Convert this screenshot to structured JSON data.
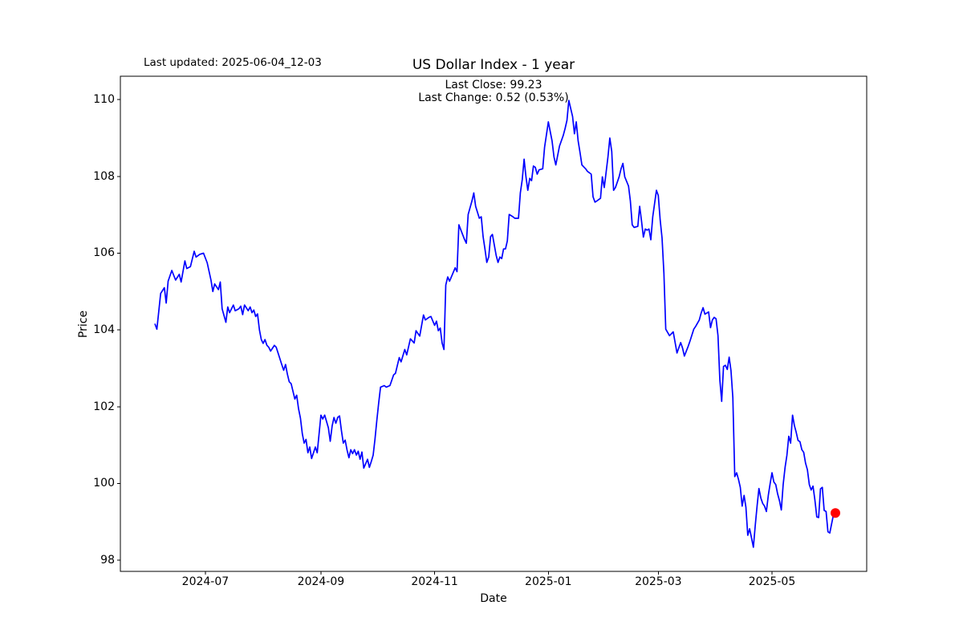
{
  "figure": {
    "last_updated": "Last updated: 2025-06-04_12-03",
    "background": "#ffffff"
  },
  "chart_data": {
    "type": "line",
    "title": "US Dollar Index - 1 year",
    "annotation": {
      "line1": "Last Close: 99.23",
      "line2": "Last Change: 0.52 (0.53%)"
    },
    "xlabel": "Date",
    "ylabel": "Price",
    "legend": "none",
    "grid": false,
    "x_unit": "days since 2024-06-04",
    "xlim": [
      -18.6,
      381.8
    ],
    "ylim": [
      97.71,
      110.61
    ],
    "x_ticks": [
      {
        "label": "2024-07",
        "day": 27
      },
      {
        "label": "2024-09",
        "day": 89
      },
      {
        "label": "2024-11",
        "day": 150
      },
      {
        "label": "2025-01",
        "day": 211
      },
      {
        "label": "2025-03",
        "day": 270
      },
      {
        "label": "2025-05",
        "day": 331
      }
    ],
    "y_ticks": [
      98,
      100,
      102,
      104,
      106,
      108,
      110
    ],
    "last_close": 99.23,
    "last_change": "0.52 (0.53%)",
    "last_point": {
      "day": 365,
      "price": 99.23,
      "color": "#ff0000",
      "radius": 6
    },
    "series": [
      {
        "name": "US Dollar Index",
        "color": "#0000ff",
        "line_width": 1.7,
        "points": [
          [
            0,
            104.15
          ],
          [
            1,
            104.02
          ],
          [
            3,
            104.95
          ],
          [
            5,
            105.1
          ],
          [
            6,
            104.7
          ],
          [
            7,
            105.27
          ],
          [
            9,
            105.55
          ],
          [
            11,
            105.3
          ],
          [
            13,
            105.45
          ],
          [
            14,
            105.25
          ],
          [
            16,
            105.8
          ],
          [
            17,
            105.6
          ],
          [
            19,
            105.65
          ],
          [
            21,
            106.05
          ],
          [
            22,
            105.9
          ],
          [
            24,
            105.97
          ],
          [
            26,
            106.0
          ],
          [
            28,
            105.75
          ],
          [
            30,
            105.3
          ],
          [
            31,
            105.0
          ],
          [
            32,
            105.2
          ],
          [
            34,
            105.05
          ],
          [
            35,
            105.25
          ],
          [
            36,
            104.55
          ],
          [
            38,
            104.2
          ],
          [
            39,
            104.6
          ],
          [
            40,
            104.45
          ],
          [
            42,
            104.65
          ],
          [
            43,
            104.5
          ],
          [
            45,
            104.55
          ],
          [
            46,
            104.62
          ],
          [
            47,
            104.4
          ],
          [
            48,
            104.65
          ],
          [
            50,
            104.5
          ],
          [
            51,
            104.6
          ],
          [
            52,
            104.45
          ],
          [
            53,
            104.52
          ],
          [
            54,
            104.35
          ],
          [
            55,
            104.42
          ],
          [
            56,
            104.0
          ],
          [
            57,
            103.75
          ],
          [
            58,
            103.65
          ],
          [
            59,
            103.75
          ],
          [
            60,
            103.6
          ],
          [
            61,
            103.55
          ],
          [
            62,
            103.45
          ],
          [
            64,
            103.6
          ],
          [
            65,
            103.55
          ],
          [
            66,
            103.4
          ],
          [
            68,
            103.1
          ],
          [
            69,
            102.95
          ],
          [
            70,
            103.1
          ],
          [
            71,
            102.85
          ],
          [
            72,
            102.65
          ],
          [
            73,
            102.6
          ],
          [
            74,
            102.4
          ],
          [
            75,
            102.2
          ],
          [
            76,
            102.3
          ],
          [
            77,
            101.95
          ],
          [
            78,
            101.7
          ],
          [
            79,
            101.3
          ],
          [
            80,
            101.05
          ],
          [
            81,
            101.15
          ],
          [
            82,
            100.8
          ],
          [
            83,
            100.95
          ],
          [
            84,
            100.65
          ],
          [
            86,
            100.95
          ],
          [
            87,
            100.8
          ],
          [
            89,
            101.78
          ],
          [
            90,
            101.68
          ],
          [
            91,
            101.78
          ],
          [
            93,
            101.45
          ],
          [
            94,
            101.1
          ],
          [
            95,
            101.5
          ],
          [
            96,
            101.72
          ],
          [
            97,
            101.57
          ],
          [
            98,
            101.72
          ],
          [
            99,
            101.76
          ],
          [
            100,
            101.37
          ],
          [
            101,
            101.05
          ],
          [
            102,
            101.13
          ],
          [
            103,
            100.88
          ],
          [
            104,
            100.67
          ],
          [
            105,
            100.88
          ],
          [
            106,
            100.78
          ],
          [
            107,
            100.88
          ],
          [
            108,
            100.74
          ],
          [
            109,
            100.84
          ],
          [
            110,
            100.63
          ],
          [
            111,
            100.82
          ],
          [
            112,
            100.4
          ],
          [
            114,
            100.63
          ],
          [
            115,
            100.42
          ],
          [
            116,
            100.57
          ],
          [
            117,
            100.74
          ],
          [
            118,
            101.16
          ],
          [
            119,
            101.65
          ],
          [
            120,
            102.1
          ],
          [
            121,
            102.51
          ],
          [
            123,
            102.55
          ],
          [
            124,
            102.51
          ],
          [
            126,
            102.55
          ],
          [
            128,
            102.83
          ],
          [
            129,
            102.87
          ],
          [
            131,
            103.28
          ],
          [
            132,
            103.17
          ],
          [
            134,
            103.49
          ],
          [
            135,
            103.35
          ],
          [
            137,
            103.77
          ],
          [
            139,
            103.66
          ],
          [
            140,
            103.98
          ],
          [
            142,
            103.84
          ],
          [
            144,
            104.39
          ],
          [
            145,
            104.26
          ],
          [
            147,
            104.33
          ],
          [
            148,
            104.35
          ],
          [
            150,
            104.12
          ],
          [
            151,
            104.23
          ],
          [
            152,
            103.98
          ],
          [
            153,
            104.05
          ],
          [
            154,
            103.66
          ],
          [
            155,
            103.49
          ],
          [
            156,
            105.17
          ],
          [
            157,
            105.38
          ],
          [
            158,
            105.27
          ],
          [
            161,
            105.62
          ],
          [
            162,
            105.52
          ],
          [
            163,
            106.74
          ],
          [
            165,
            106.49
          ],
          [
            166,
            106.36
          ],
          [
            167,
            106.26
          ],
          [
            168,
            107.01
          ],
          [
            170,
            107.36
          ],
          [
            171,
            107.57
          ],
          [
            172,
            107.22
          ],
          [
            174,
            106.91
          ],
          [
            175,
            106.95
          ],
          [
            176,
            106.43
          ],
          [
            177,
            106.11
          ],
          [
            178,
            105.76
          ],
          [
            179,
            105.9
          ],
          [
            180,
            106.43
          ],
          [
            181,
            106.49
          ],
          [
            183,
            105.94
          ],
          [
            184,
            105.76
          ],
          [
            185,
            105.9
          ],
          [
            186,
            105.86
          ],
          [
            187,
            106.11
          ],
          [
            188,
            106.11
          ],
          [
            189,
            106.32
          ],
          [
            190,
            107.01
          ],
          [
            192,
            106.95
          ],
          [
            193,
            106.91
          ],
          [
            195,
            106.91
          ],
          [
            196,
            107.57
          ],
          [
            197,
            107.92
          ],
          [
            198,
            108.45
          ],
          [
            199,
            107.99
          ],
          [
            200,
            107.64
          ],
          [
            201,
            107.95
          ],
          [
            202,
            107.89
          ],
          [
            203,
            108.27
          ],
          [
            204,
            108.24
          ],
          [
            205,
            108.06
          ],
          [
            206,
            108.17
          ],
          [
            208,
            108.2
          ],
          [
            209,
            108.76
          ],
          [
            211,
            109.42
          ],
          [
            213,
            108.93
          ],
          [
            214,
            108.51
          ],
          [
            215,
            108.3
          ],
          [
            217,
            108.79
          ],
          [
            219,
            109.07
          ],
          [
            220,
            109.25
          ],
          [
            221,
            109.46
          ],
          [
            222,
            109.98
          ],
          [
            224,
            109.56
          ],
          [
            225,
            109.11
          ],
          [
            226,
            109.42
          ],
          [
            227,
            108.93
          ],
          [
            228,
            108.62
          ],
          [
            229,
            108.3
          ],
          [
            231,
            108.2
          ],
          [
            232,
            108.13
          ],
          [
            234,
            108.06
          ],
          [
            235,
            107.47
          ],
          [
            236,
            107.33
          ],
          [
            237,
            107.36
          ],
          [
            239,
            107.43
          ],
          [
            240,
            107.99
          ],
          [
            241,
            107.71
          ],
          [
            243,
            108.51
          ],
          [
            244,
            109.0
          ],
          [
            245,
            108.65
          ],
          [
            246,
            107.64
          ],
          [
            247,
            107.71
          ],
          [
            249,
            107.99
          ],
          [
            250,
            108.2
          ],
          [
            251,
            108.34
          ],
          [
            252,
            107.99
          ],
          [
            254,
            107.75
          ],
          [
            255,
            107.36
          ],
          [
            256,
            106.74
          ],
          [
            257,
            106.67
          ],
          [
            259,
            106.7
          ],
          [
            260,
            107.22
          ],
          [
            261,
            106.84
          ],
          [
            262,
            106.42
          ],
          [
            263,
            106.63
          ],
          [
            264,
            106.6
          ],
          [
            265,
            106.63
          ],
          [
            266,
            106.35
          ],
          [
            267,
            106.95
          ],
          [
            269,
            107.64
          ],
          [
            270,
            107.5
          ],
          [
            271,
            106.88
          ],
          [
            272,
            106.39
          ],
          [
            273,
            105.48
          ],
          [
            274,
            104.02
          ],
          [
            276,
            103.85
          ],
          [
            278,
            103.95
          ],
          [
            280,
            103.4
          ],
          [
            282,
            103.67
          ],
          [
            283,
            103.53
          ],
          [
            284,
            103.32
          ],
          [
            286,
            103.57
          ],
          [
            287,
            103.71
          ],
          [
            289,
            104.02
          ],
          [
            290,
            104.09
          ],
          [
            292,
            104.26
          ],
          [
            293,
            104.44
          ],
          [
            294,
            104.58
          ],
          [
            295,
            104.41
          ],
          [
            297,
            104.47
          ],
          [
            298,
            104.06
          ],
          [
            299,
            104.26
          ],
          [
            300,
            104.33
          ],
          [
            301,
            104.29
          ],
          [
            302,
            103.85
          ],
          [
            303,
            102.7
          ],
          [
            304,
            102.14
          ],
          [
            305,
            103.05
          ],
          [
            306,
            103.08
          ],
          [
            307,
            102.97
          ],
          [
            308,
            103.29
          ],
          [
            309,
            102.94
          ],
          [
            310,
            102.24
          ],
          [
            311,
            100.18
          ],
          [
            312,
            100.28
          ],
          [
            313,
            100.11
          ],
          [
            314,
            99.9
          ],
          [
            315,
            99.41
          ],
          [
            316,
            99.69
          ],
          [
            317,
            99.38
          ],
          [
            318,
            98.65
          ],
          [
            319,
            98.82
          ],
          [
            320,
            98.58
          ],
          [
            321,
            98.34
          ],
          [
            322,
            98.9
          ],
          [
            323,
            99.41
          ],
          [
            324,
            99.87
          ],
          [
            325,
            99.62
          ],
          [
            326,
            99.48
          ],
          [
            327,
            99.41
          ],
          [
            328,
            99.27
          ],
          [
            329,
            99.69
          ],
          [
            330,
            100.0
          ],
          [
            331,
            100.28
          ],
          [
            332,
            100.04
          ],
          [
            333,
            99.97
          ],
          [
            334,
            99.73
          ],
          [
            335,
            99.55
          ],
          [
            336,
            99.31
          ],
          [
            337,
            99.97
          ],
          [
            338,
            100.42
          ],
          [
            339,
            100.74
          ],
          [
            340,
            101.23
          ],
          [
            341,
            101.05
          ],
          [
            342,
            101.78
          ],
          [
            343,
            101.51
          ],
          [
            344,
            101.33
          ],
          [
            345,
            101.12
          ],
          [
            346,
            101.09
          ],
          [
            347,
            100.88
          ],
          [
            348,
            100.81
          ],
          [
            349,
            100.53
          ],
          [
            350,
            100.36
          ],
          [
            351,
            99.97
          ],
          [
            352,
            99.83
          ],
          [
            353,
            99.93
          ],
          [
            354,
            99.58
          ],
          [
            355,
            99.13
          ],
          [
            356,
            99.11
          ],
          [
            357,
            99.86
          ],
          [
            358,
            99.9
          ],
          [
            359,
            99.3
          ],
          [
            360,
            99.27
          ],
          [
            361,
            98.74
          ],
          [
            362,
            98.71
          ],
          [
            364,
            99.2
          ],
          [
            365,
            99.23
          ]
        ]
      }
    ]
  }
}
